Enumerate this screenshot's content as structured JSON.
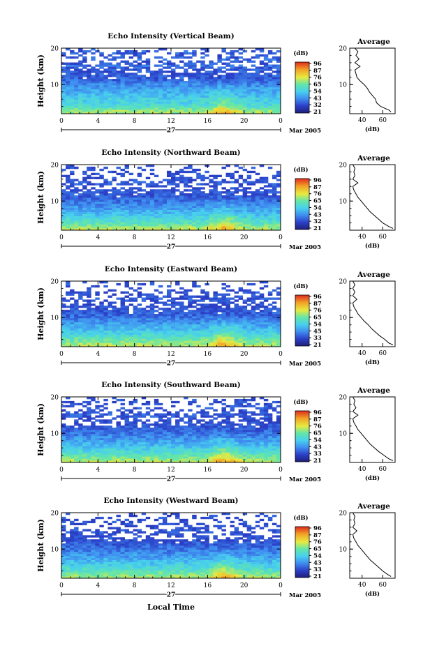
{
  "chart_data": [
    {
      "type": "heatmap",
      "title": "Echo Intensity (Vertical Beam)",
      "ylabel": "Height (km)",
      "y_ticks": [
        "20",
        "10"
      ],
      "ylim": [
        2,
        20
      ],
      "x_ticks": [
        "0",
        "4",
        "8",
        "12",
        "16",
        "20",
        "0"
      ],
      "xlim": [
        0,
        24
      ],
      "date_label": "27",
      "month_label": "Mar 2005",
      "colorbar": {
        "unit": "(dB)",
        "ticks": [
          "96",
          "87",
          "76",
          "65",
          "54",
          "43",
          "32",
          "21"
        ],
        "range": [
          21,
          96
        ]
      },
      "profile": {
        "title": "Average",
        "xlabel": "(dB)",
        "x_ticks": [
          "40",
          "60"
        ],
        "y_ticks": [
          "20",
          "10"
        ],
        "xlim": [
          28,
          72
        ],
        "ylim": [
          2,
          20
        ],
        "height_km": [
          2.5,
          3,
          3.5,
          4,
          5,
          6,
          7,
          8,
          9,
          10,
          11,
          12,
          13,
          14,
          15,
          16,
          17,
          18,
          19,
          20
        ],
        "db": [
          68,
          66,
          62,
          58,
          54,
          53,
          50,
          47,
          45,
          42,
          38,
          35,
          34,
          33,
          38,
          33,
          37,
          34,
          36,
          33
        ]
      }
    },
    {
      "type": "heatmap",
      "title": "Echo Intensity (Northward Beam)",
      "ylabel": "Height (km)",
      "y_ticks": [
        "20",
        "10"
      ],
      "ylim": [
        2,
        20
      ],
      "x_ticks": [
        "0",
        "4",
        "8",
        "12",
        "16",
        "20",
        "0"
      ],
      "xlim": [
        0,
        24
      ],
      "date_label": "27",
      "month_label": "Mar 2005",
      "colorbar": {
        "unit": "(dB)",
        "ticks": [
          "96",
          "87",
          "76",
          "65",
          "54",
          "43",
          "32",
          "21"
        ],
        "range": [
          21,
          96
        ]
      },
      "profile": {
        "title": "Average",
        "xlabel": "(dB)",
        "x_ticks": [
          "40",
          "60"
        ],
        "y_ticks": [
          "20",
          "10"
        ],
        "xlim": [
          28,
          72
        ],
        "ylim": [
          2,
          20
        ],
        "height_km": [
          2.5,
          3,
          4,
          5,
          6,
          7,
          8,
          9,
          10,
          11,
          12,
          13,
          14,
          15,
          16,
          17,
          18,
          19,
          20
        ],
        "db": [
          70,
          66,
          60,
          56,
          52,
          48,
          45,
          42,
          39,
          36,
          34,
          32,
          31,
          36,
          31,
          33,
          32,
          33,
          31
        ]
      }
    },
    {
      "type": "heatmap",
      "title": "Echo Intensity (Eastward Beam)",
      "ylabel": "Height (km)",
      "y_ticks": [
        "20",
        "10"
      ],
      "ylim": [
        2,
        20
      ],
      "x_ticks": [
        "0",
        "4",
        "8",
        "12",
        "16",
        "20",
        "0"
      ],
      "xlim": [
        0,
        24
      ],
      "date_label": "27",
      "month_label": "Mar 2005",
      "colorbar": {
        "unit": "(dB)",
        "ticks": [
          "96",
          "87",
          "76",
          "65",
          "54",
          "45",
          "33",
          "21"
        ],
        "range": [
          21,
          96
        ]
      },
      "profile": {
        "title": "Average",
        "xlabel": "(dB)",
        "x_ticks": [
          "40",
          "60"
        ],
        "y_ticks": [
          "20",
          "10"
        ],
        "xlim": [
          28,
          72
        ],
        "ylim": [
          2,
          20
        ],
        "height_km": [
          2.5,
          3,
          4,
          5,
          6,
          7,
          8,
          9,
          10,
          11,
          12,
          13,
          14,
          15,
          16,
          17,
          18,
          19,
          20
        ],
        "db": [
          70,
          66,
          62,
          57,
          53,
          49,
          46,
          42,
          39,
          36,
          34,
          32,
          31,
          35,
          31,
          33,
          31,
          33,
          31
        ]
      }
    },
    {
      "type": "heatmap",
      "title": "Echo Intensity (Southward Beam)",
      "ylabel": "Height (km)",
      "y_ticks": [
        "20",
        "10"
      ],
      "ylim": [
        2,
        20
      ],
      "x_ticks": [
        "0",
        "4",
        "8",
        "12",
        "16",
        "20",
        "0"
      ],
      "xlim": [
        0,
        24
      ],
      "date_label": "27",
      "month_label": "Mar 2005",
      "colorbar": {
        "unit": "(dB)",
        "ticks": [
          "96",
          "87",
          "76",
          "65",
          "54",
          "43",
          "33",
          "21"
        ],
        "range": [
          21,
          96
        ]
      },
      "profile": {
        "title": "Average",
        "xlabel": "(dB)",
        "x_ticks": [
          "40",
          "60"
        ],
        "y_ticks": [
          "20",
          "10"
        ],
        "xlim": [
          28,
          72
        ],
        "ylim": [
          2,
          20
        ],
        "height_km": [
          2.5,
          3,
          4,
          5,
          6,
          7,
          8,
          9,
          10,
          11,
          12,
          13,
          14,
          15,
          16,
          17,
          18,
          19,
          20
        ],
        "db": [
          70,
          66,
          61,
          56,
          52,
          48,
          45,
          42,
          39,
          36,
          34,
          32,
          31,
          36,
          31,
          34,
          32,
          33,
          31
        ]
      }
    },
    {
      "type": "heatmap",
      "title": "Echo Intensity (Westward Beam)",
      "ylabel": "Height (km)",
      "y_ticks": [
        "20",
        "10"
      ],
      "ylim": [
        2,
        20
      ],
      "x_ticks": [
        "0",
        "4",
        "8",
        "12",
        "16",
        "20",
        "0"
      ],
      "xlim": [
        0,
        24
      ],
      "date_label": "27",
      "month_label": "Mar 2005",
      "xlabel": "Local Time",
      "colorbar": {
        "unit": "(dB)",
        "ticks": [
          "96",
          "87",
          "76",
          "65",
          "54",
          "43",
          "33",
          "21"
        ],
        "range": [
          21,
          96
        ]
      },
      "profile": {
        "title": "Average",
        "xlabel": "(dB)",
        "x_ticks": [
          "40",
          "60"
        ],
        "y_ticks": [
          "20",
          "10"
        ],
        "xlim": [
          28,
          72
        ],
        "ylim": [
          2,
          20
        ],
        "height_km": [
          2.5,
          3,
          4,
          5,
          6,
          7,
          8,
          9,
          10,
          11,
          12,
          13,
          14,
          15,
          16,
          17,
          18,
          19,
          20
        ],
        "db": [
          68,
          65,
          60,
          56,
          52,
          48,
          45,
          42,
          39,
          36,
          34,
          32,
          31,
          35,
          31,
          33,
          32,
          33,
          31
        ]
      }
    }
  ]
}
